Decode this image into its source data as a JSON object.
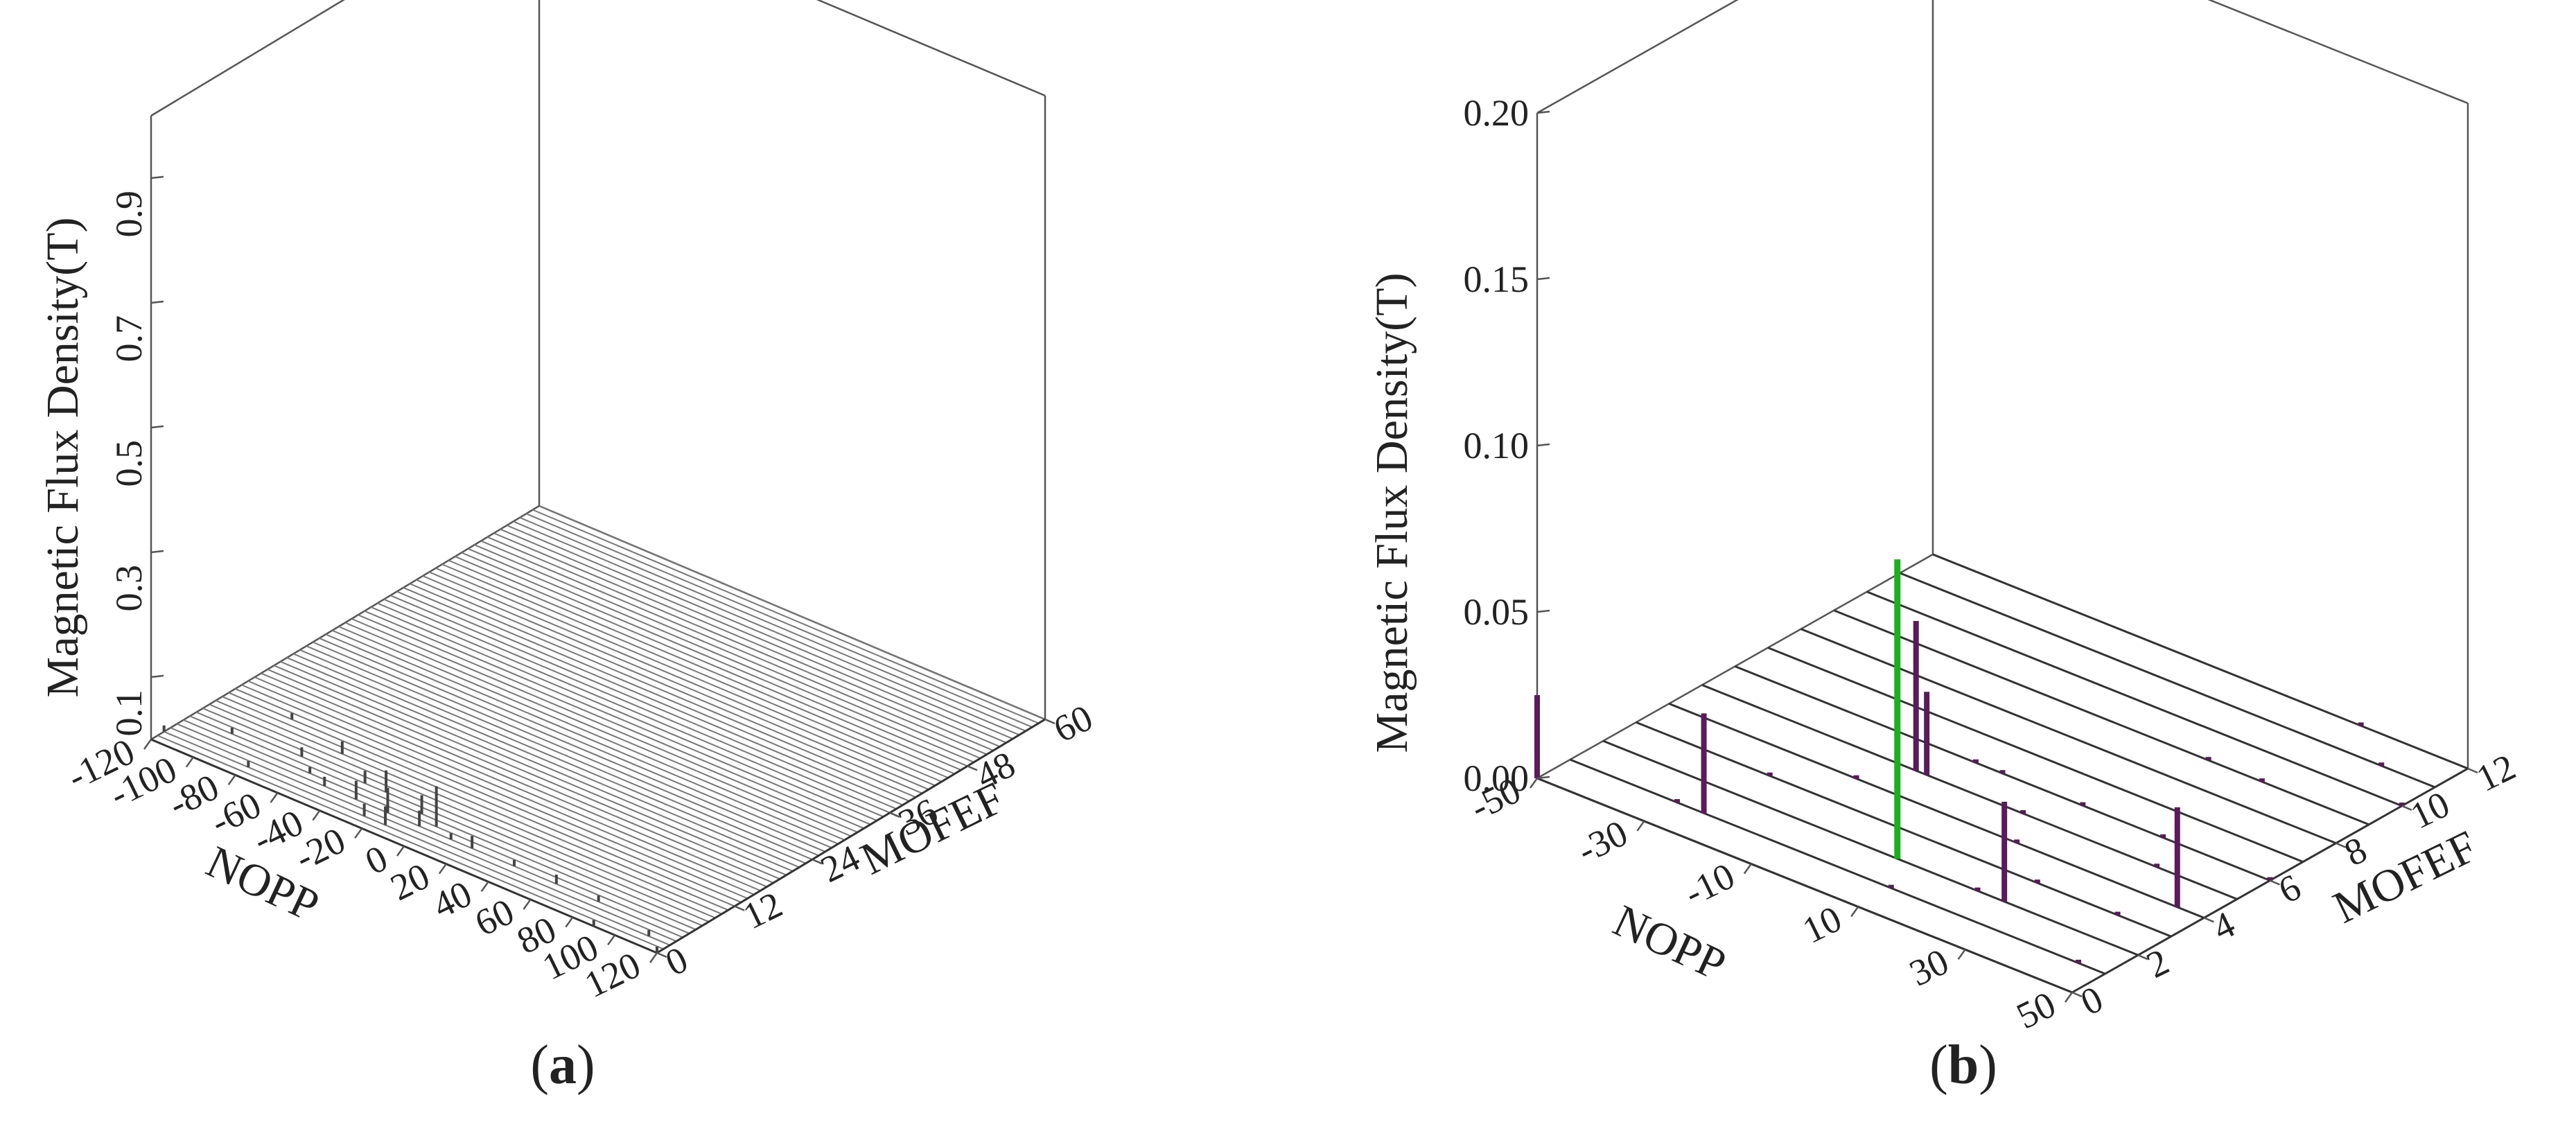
{
  "colors": {
    "frame": "#555555",
    "grid": "#777777",
    "grid_dark": "#333333",
    "spike_a": "#444444",
    "spike_b": "#5a1a5c",
    "spike_b_max": "#1db01d",
    "dot_b": "#5a1a5c"
  },
  "panels": [
    {
      "caption": "a",
      "chart_data": {
        "type": "3d-stem",
        "xlabel": "NOPP",
        "ylabel": "MOFEF",
        "zlabel": "Magnetic Flux Density(T)",
        "xlim": [
          -120,
          120
        ],
        "ylim": [
          0,
          60
        ],
        "zlim": [
          0,
          1.0
        ],
        "x_tick_labels": [
          "-120",
          "-100",
          "-80",
          "-60",
          "-40",
          "-20",
          "0",
          "20",
          "40",
          "60",
          "80",
          "100",
          "120"
        ],
        "y_tick_labels": [
          "0",
          "12",
          "24",
          "36",
          "48",
          "60"
        ],
        "z_tick_labels": [
          "0.1",
          "0.3",
          "0.5",
          "0.7",
          "0.9"
        ],
        "z_tick_values": [
          0.1,
          0.3,
          0.5,
          0.7,
          0.9
        ],
        "grid_lines_along_y": 60,
        "points": [
          {
            "x": -120,
            "y": 2,
            "z": 0.01
          },
          {
            "x": -100,
            "y": 6,
            "z": 0.01
          },
          {
            "x": -90,
            "y": 12,
            "z": 0.01
          },
          {
            "x": -80,
            "y": 2,
            "z": 0.01
          },
          {
            "x": -70,
            "y": 7,
            "z": 0.015
          },
          {
            "x": -60,
            "y": 10,
            "z": 0.02
          },
          {
            "x": -60,
            "y": 5,
            "z": 0.01
          },
          {
            "x": -50,
            "y": 4,
            "z": 0.015
          },
          {
            "x": -40,
            "y": 7,
            "z": 0.02
          },
          {
            "x": -35,
            "y": 4,
            "z": 0.03
          },
          {
            "x": -30,
            "y": 7,
            "z": 0.035
          },
          {
            "x": -25,
            "y": 2,
            "z": 0.02
          },
          {
            "x": -20,
            "y": 4,
            "z": 0.04
          },
          {
            "x": -15,
            "y": 2,
            "z": 0.03
          },
          {
            "x": -10,
            "y": 6,
            "z": 0.03
          },
          {
            "x": -5,
            "y": 4,
            "z": 0.025
          },
          {
            "x": 0,
            "y": 5,
            "z": 0.065
          },
          {
            "x": 10,
            "y": 4,
            "z": 0.01
          },
          {
            "x": 20,
            "y": 4,
            "z": 0.02
          },
          {
            "x": 40,
            "y": 4,
            "z": 0.01
          },
          {
            "x": 60,
            "y": 4,
            "z": 0.015
          },
          {
            "x": 80,
            "y": 4,
            "z": 0.01
          },
          {
            "x": 90,
            "y": 0,
            "z": 0.01
          },
          {
            "x": 110,
            "y": 2,
            "z": 0.01
          },
          {
            "x": 120,
            "y": 0,
            "z": 0.01
          }
        ]
      }
    },
    {
      "caption": "b",
      "chart_data": {
        "type": "3d-stem",
        "xlabel": "NOPP",
        "ylabel": "MOFEF",
        "zlabel": "Magnetic Flux Density(T)",
        "xlim": [
          -50,
          50
        ],
        "ylim": [
          0,
          12
        ],
        "zlim": [
          0,
          0.2
        ],
        "x_tick_labels": [
          "-50",
          "-30",
          "-10",
          "10",
          "30",
          "50"
        ],
        "y_tick_labels": [
          "0",
          "2",
          "4",
          "6",
          "8",
          "10",
          "12"
        ],
        "z_tick_labels": [
          "0.00",
          "0.05",
          "0.10",
          "0.15",
          "0.20"
        ],
        "z_tick_values": [
          0.0,
          0.05,
          0.1,
          0.15,
          0.2
        ],
        "grid_lines_along_y": 12,
        "max_point": {
          "x": 5,
          "y": 2,
          "z": 0.09
        },
        "points": [
          {
            "x": -50,
            "y": 0,
            "z": 0.025
          },
          {
            "x": -30,
            "y": 1,
            "z": 0.001
          },
          {
            "x": -25,
            "y": 1,
            "z": 0.03
          },
          {
            "x": -25,
            "y": 3,
            "z": 0.001
          },
          {
            "x": -15,
            "y": 4,
            "z": 0.001
          },
          {
            "x": -10,
            "y": 5,
            "z": 0.045
          },
          {
            "x": -8,
            "y": 5,
            "z": 0.025
          },
          {
            "x": 5,
            "y": 2,
            "z": 0.09
          },
          {
            "x": 0,
            "y": 6,
            "z": 0.001
          },
          {
            "x": -5,
            "y": 6,
            "z": 0.001
          },
          {
            "x": 10,
            "y": 5,
            "z": 0.001
          },
          {
            "x": 15,
            "y": 6,
            "z": 0.001
          },
          {
            "x": 15,
            "y": 4,
            "z": 0.001
          },
          {
            "x": 10,
            "y": 1,
            "z": 0.001
          },
          {
            "x": 20,
            "y": 2,
            "z": 0.001
          },
          {
            "x": 25,
            "y": 2,
            "z": 0.03
          },
          {
            "x": 25,
            "y": 3,
            "z": 0.001
          },
          {
            "x": 30,
            "y": 6,
            "z": 0.001
          },
          {
            "x": 35,
            "y": 5,
            "z": 0.001
          },
          {
            "x": 40,
            "y": 3,
            "z": 0.001
          },
          {
            "x": 45,
            "y": 1,
            "z": 0.001
          },
          {
            "x": 45,
            "y": 4,
            "z": 0.03
          },
          {
            "x": 30,
            "y": 9,
            "z": 0.001
          },
          {
            "x": 20,
            "y": 9,
            "z": 0.001
          },
          {
            "x": 40,
            "y": 11,
            "z": 0.001
          },
          {
            "x": 30,
            "y": 12,
            "z": 0.001
          },
          {
            "x": 50,
            "y": 6,
            "z": 0.001
          },
          {
            "x": 50,
            "y": 10,
            "z": 0.001
          }
        ]
      }
    }
  ]
}
